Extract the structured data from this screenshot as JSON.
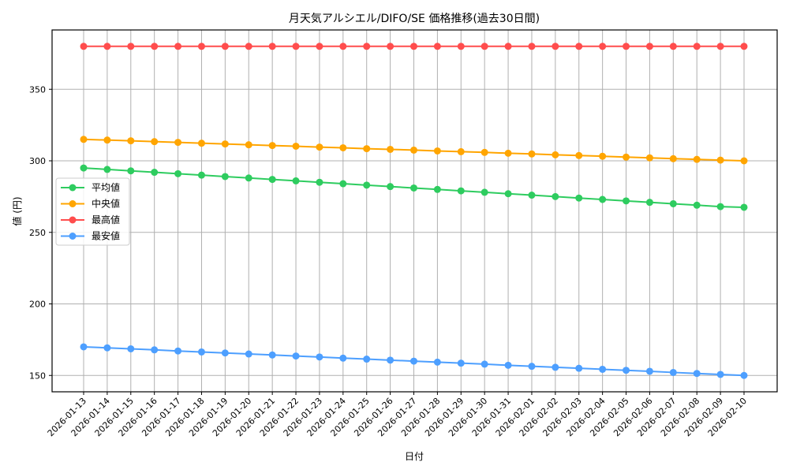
{
  "chart_data": {
    "type": "line",
    "title": "月天気アルシエル/DIFO/SE 価格推移(過去30日間)",
    "xlabel": "日付",
    "ylabel": "値 (円)",
    "ylim": [
      138,
      388
    ],
    "yticks": [
      150,
      200,
      250,
      300,
      350
    ],
    "grid": true,
    "legend_position": "center left",
    "categories": [
      "2026-01-13",
      "2026-01-14",
      "2026-01-15",
      "2026-01-16",
      "2026-01-17",
      "2026-01-18",
      "2026-01-19",
      "2026-01-20",
      "2026-01-21",
      "2026-01-22",
      "2026-01-23",
      "2026-01-24",
      "2026-01-25",
      "2026-01-26",
      "2026-01-27",
      "2026-01-28",
      "2026-01-29",
      "2026-01-30",
      "2026-01-31",
      "2026-02-01",
      "2026-02-02",
      "2026-02-03",
      "2026-02-04",
      "2026-02-05",
      "2026-02-06",
      "2026-02-07",
      "2026-02-08",
      "2026-02-09",
      "2026-02-10"
    ],
    "series": [
      {
        "name": "平均値",
        "color": "#2ecc5f",
        "values": [
          295,
          294,
          293,
          292,
          291,
          290,
          289,
          288,
          287,
          286,
          285,
          284,
          283,
          282,
          281,
          280,
          279,
          278,
          277,
          276,
          275,
          274,
          273,
          272,
          271,
          270,
          269,
          268,
          267.5
        ]
      },
      {
        "name": "中央値",
        "color": "#ffa500",
        "values": [
          315,
          314.5,
          314,
          313.4,
          312.9,
          312.3,
          311.8,
          311.2,
          310.7,
          310.2,
          309.6,
          309.1,
          308.5,
          308,
          307.5,
          306.9,
          306.4,
          305.9,
          305.3,
          304.8,
          304.2,
          303.7,
          303.2,
          302.6,
          302.1,
          301.5,
          301,
          300.5,
          300
        ]
      },
      {
        "name": "最高値",
        "color": "#ff4d4d",
        "values": [
          380,
          380,
          380,
          380,
          380,
          380,
          380,
          380,
          380,
          380,
          380,
          380,
          380,
          380,
          380,
          380,
          380,
          380,
          380,
          380,
          380,
          380,
          380,
          380,
          380,
          380,
          380,
          380,
          380
        ]
      },
      {
        "name": "最安値",
        "color": "#4d9fff",
        "values": [
          170,
          169.3,
          168.6,
          167.9,
          167.1,
          166.4,
          165.7,
          165,
          164.3,
          163.6,
          162.9,
          162.1,
          161.4,
          160.7,
          160,
          159.3,
          158.6,
          157.9,
          157.1,
          156.4,
          155.7,
          155,
          154.3,
          153.6,
          152.9,
          152.1,
          151.4,
          150.7,
          150
        ]
      }
    ]
  }
}
